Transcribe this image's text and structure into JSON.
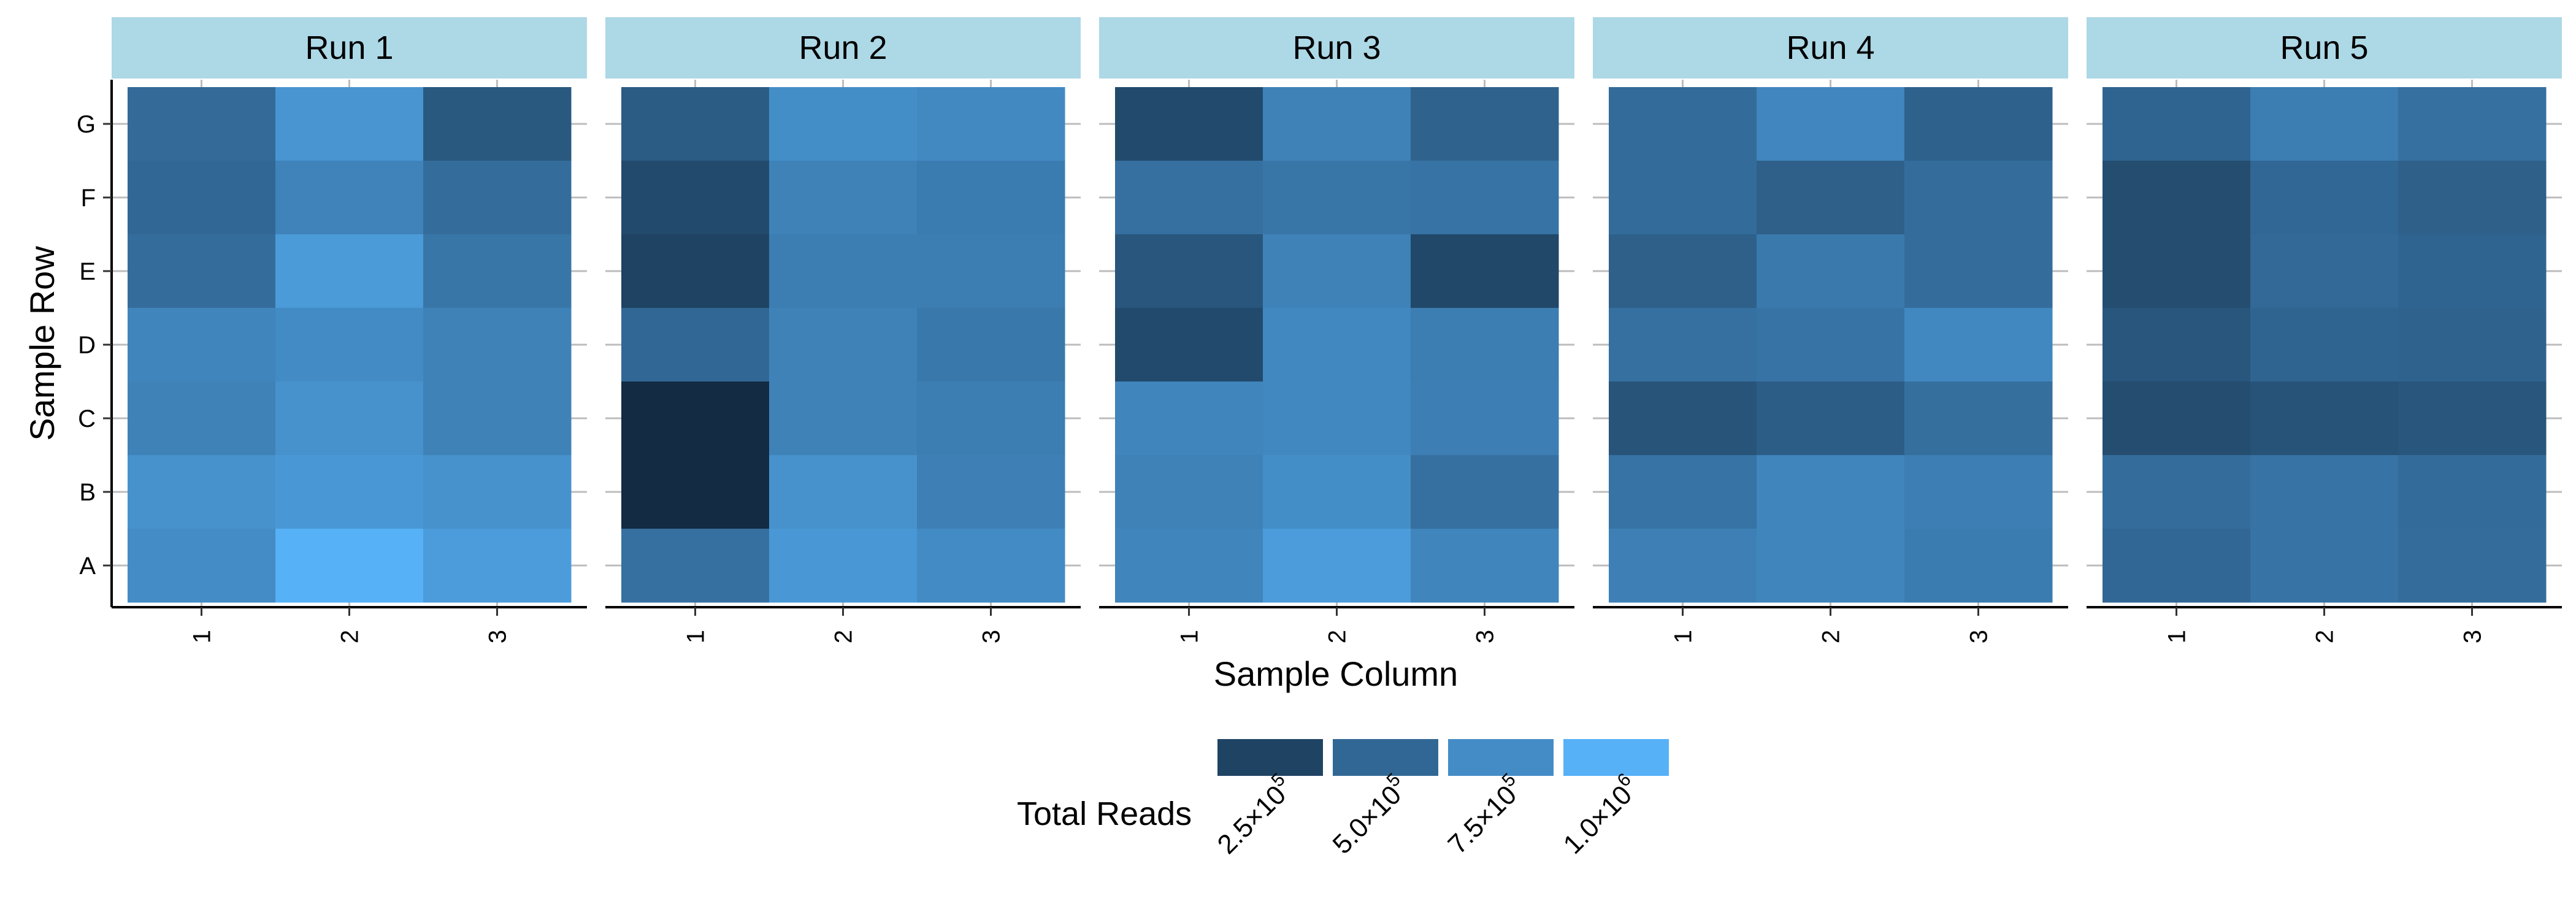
{
  "chart_data": {
    "type": "heatmap",
    "facets": [
      {
        "name": "Run 1",
        "values": {
          "G": [
            520000,
            810000,
            400000
          ],
          "F": [
            500000,
            690000,
            540000
          ],
          "E": [
            540000,
            850000,
            600000
          ],
          "D": [
            700000,
            740000,
            680000
          ],
          "C": [
            680000,
            790000,
            680000
          ],
          "B": [
            790000,
            830000,
            790000
          ],
          "A": [
            750000,
            1000000,
            860000
          ]
        }
      },
      {
        "name": "Run 2",
        "values": {
          "G": [
            420000,
            760000,
            730000
          ],
          "F": [
            300000,
            680000,
            640000
          ],
          "E": [
            250000,
            650000,
            650000
          ],
          "D": [
            500000,
            680000,
            610000
          ],
          "C": [
            90000,
            680000,
            650000
          ],
          "B": [
            90000,
            790000,
            670000
          ],
          "A": [
            560000,
            830000,
            740000
          ]
        }
      },
      {
        "name": "Run 3",
        "values": {
          "G": [
            300000,
            680000,
            470000
          ],
          "F": [
            560000,
            600000,
            580000
          ],
          "E": [
            380000,
            680000,
            280000
          ],
          "D": [
            300000,
            720000,
            650000
          ],
          "C": [
            700000,
            720000,
            660000
          ],
          "B": [
            680000,
            760000,
            560000
          ],
          "A": [
            700000,
            860000,
            700000
          ]
        }
      },
      {
        "name": "Run 4",
        "values": {
          "G": [
            530000,
            710000,
            460000
          ],
          "F": [
            530000,
            450000,
            540000
          ],
          "E": [
            450000,
            620000,
            540000
          ],
          "D": [
            560000,
            580000,
            720000
          ],
          "C": [
            370000,
            430000,
            550000
          ],
          "B": [
            580000,
            700000,
            660000
          ],
          "A": [
            670000,
            700000,
            640000
          ]
        }
      },
      {
        "name": "Run 5",
        "values": {
          "G": [
            480000,
            650000,
            560000
          ],
          "F": [
            320000,
            500000,
            450000
          ],
          "E": [
            320000,
            510000,
            480000
          ],
          "D": [
            380000,
            480000,
            470000
          ],
          "C": [
            320000,
            360000,
            380000
          ],
          "B": [
            540000,
            580000,
            530000
          ],
          "A": [
            500000,
            580000,
            540000
          ]
        }
      }
    ],
    "x_categories": [
      "1",
      "2",
      "3"
    ],
    "y_categories": [
      "A",
      "B",
      "C",
      "D",
      "E",
      "F",
      "G"
    ],
    "xlabel": "Sample Column",
    "ylabel": "Sample Row",
    "legend": {
      "title": "Total Reads",
      "placement": "bottom",
      "breaks": [
        250000,
        500000,
        750000,
        1000000
      ],
      "labels": [
        {
          "mantissa": "2.5",
          "times": "×",
          "base": "10",
          "exp": "5"
        },
        {
          "mantissa": "5.0",
          "times": "×",
          "base": "10",
          "exp": "5"
        },
        {
          "mantissa": "7.5",
          "times": "×",
          "base": "10",
          "exp": "5"
        },
        {
          "mantissa": "1.0",
          "times": "×",
          "base": "10",
          "exp": "6"
        }
      ],
      "low_color": "#132B43",
      "high_color": "#56B1F7"
    },
    "strip_color": "#ADD8E6",
    "grid": true
  }
}
